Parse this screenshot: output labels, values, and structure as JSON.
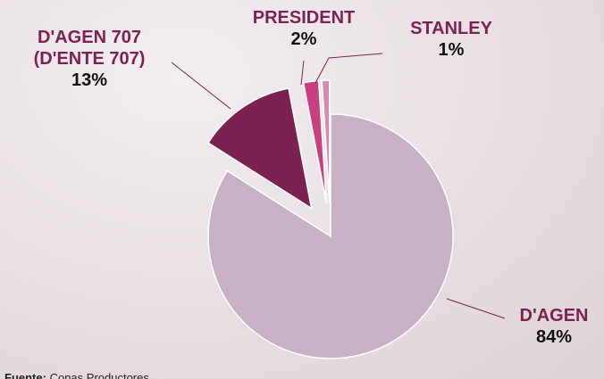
{
  "chart_data": {
    "type": "pie",
    "categories": [
      "D'AGEN",
      "D'AGEN 707 (D'ENTE 707)",
      "PRESIDENT",
      "STANLEY"
    ],
    "values": [
      84,
      13,
      2,
      1
    ],
    "value_labels": [
      "84%",
      "13%",
      "2%",
      "1%"
    ],
    "colors": [
      "#c9b1c5",
      "#7b2252",
      "#c8407f",
      "#d98ab2"
    ],
    "source_label": "Fuente:",
    "source": "Conas Productores"
  }
}
